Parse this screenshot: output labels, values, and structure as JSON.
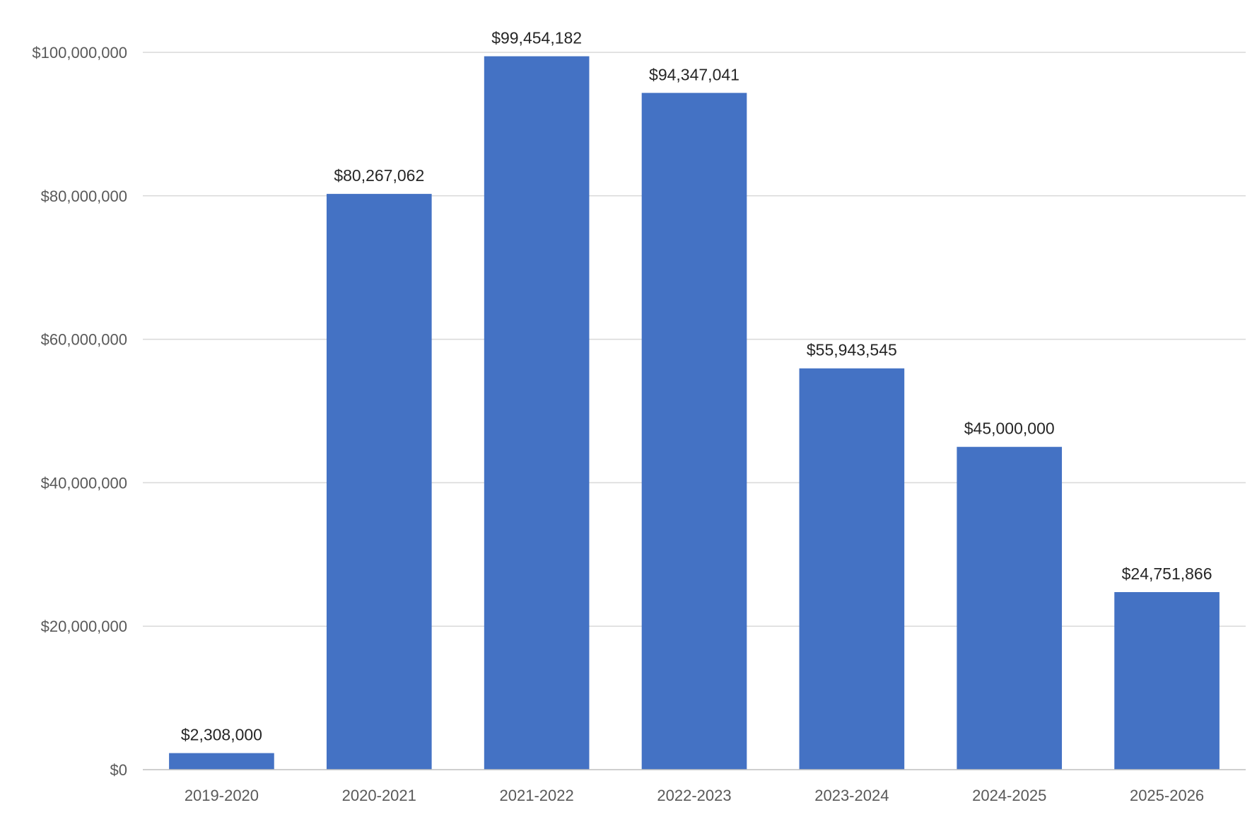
{
  "chart_data": {
    "type": "bar",
    "title": "",
    "xlabel": "",
    "ylabel": "",
    "categories": [
      "2019-2020",
      "2020-2021",
      "2021-2022",
      "2022-2023",
      "2023-2024",
      "2024-2025",
      "2025-2026"
    ],
    "values": [
      2308000,
      80267062,
      99454182,
      94347041,
      55943545,
      45000000,
      24751866
    ],
    "data_labels": [
      "$2,308,000",
      "$80,267,062",
      "$99,454,182",
      "$94,347,041",
      "$55,943,545",
      "$45,000,000",
      "$24,751,866"
    ],
    "ylim": [
      0,
      100000000
    ],
    "y_ticks": [
      0,
      20000000,
      40000000,
      60000000,
      80000000,
      100000000
    ],
    "y_tick_labels": [
      "$0",
      "$20,000,000",
      "$40,000,000",
      "$60,000,000",
      "$80,000,000",
      "$100,000,000"
    ],
    "grid": true,
    "legend": "none",
    "bar_color": "#4472c4"
  }
}
